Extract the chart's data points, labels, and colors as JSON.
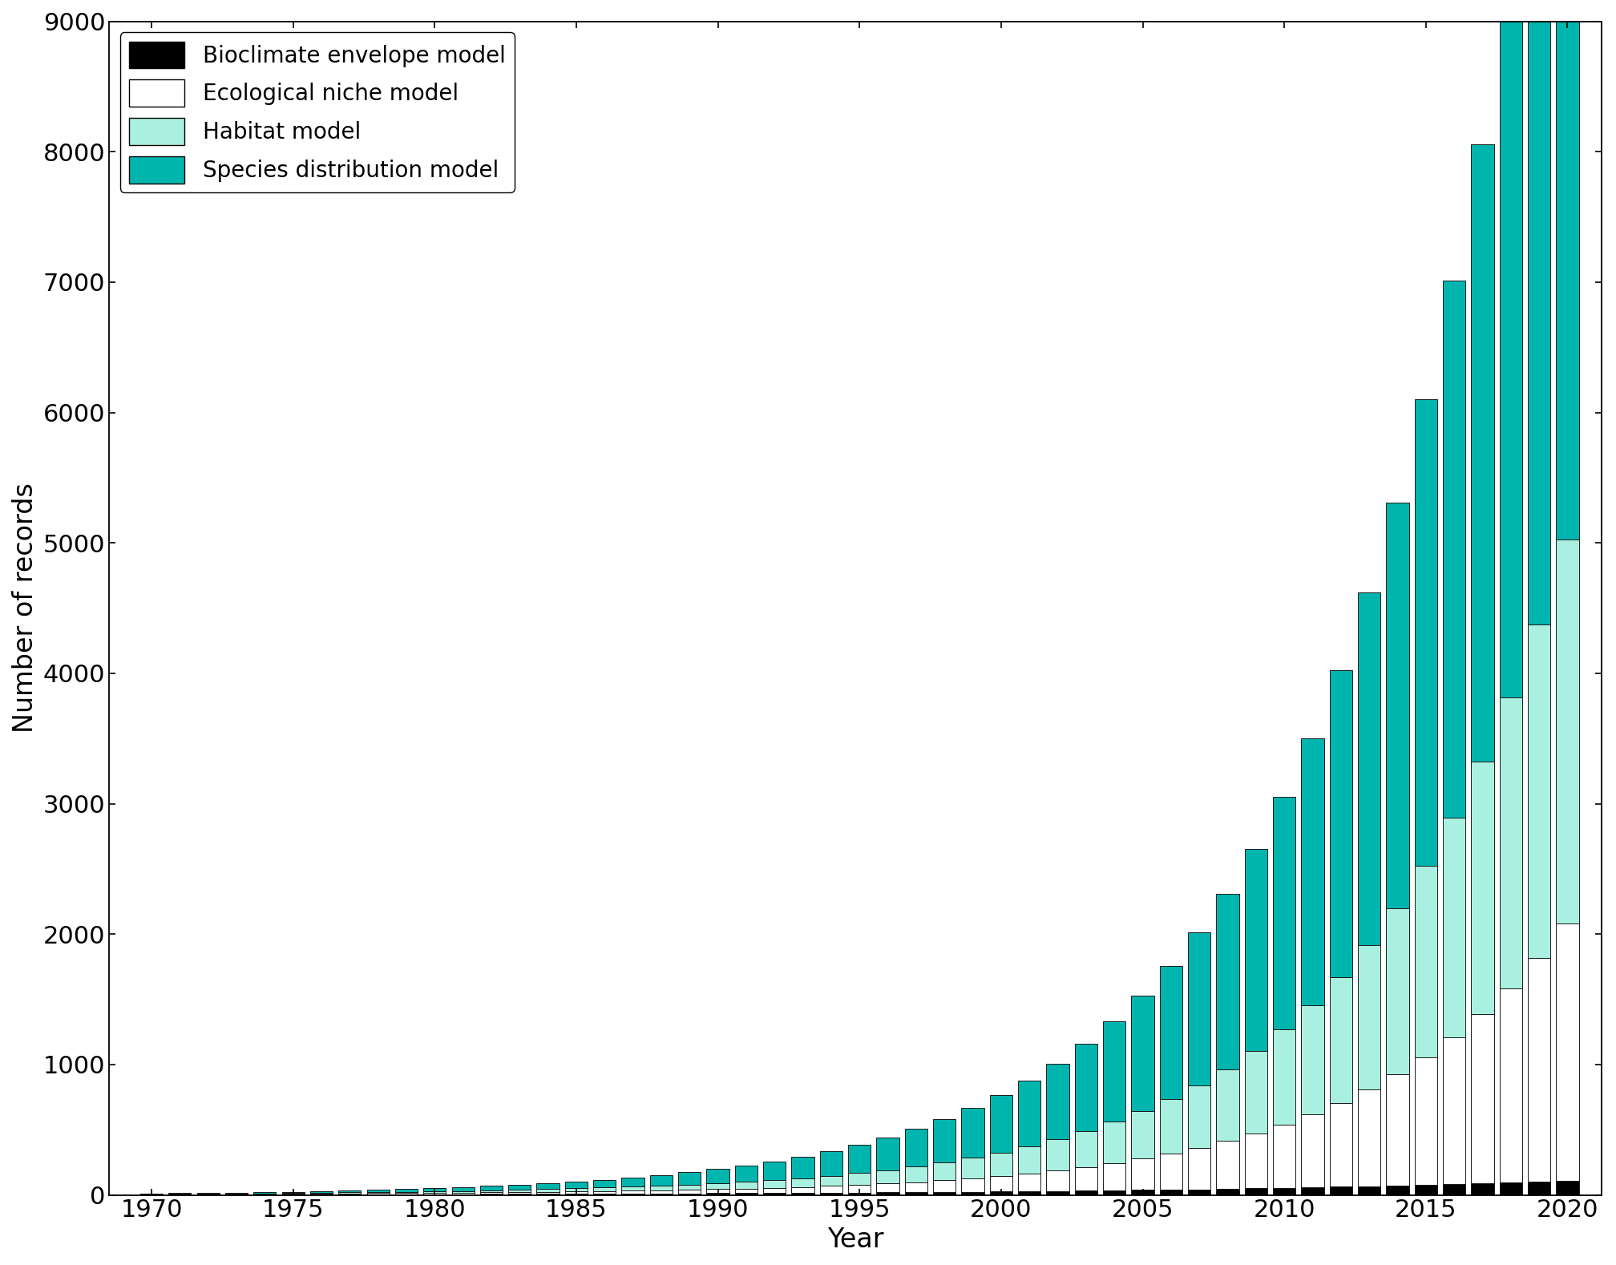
{
  "years": [
    1970,
    1971,
    1972,
    1973,
    1974,
    1975,
    1976,
    1977,
    1978,
    1979,
    1980,
    1981,
    1982,
    1983,
    1984,
    1985,
    1986,
    1987,
    1988,
    1989,
    1990,
    1991,
    1992,
    1993,
    1994,
    1995,
    1996,
    1997,
    1998,
    1999,
    2000,
    2001,
    2002,
    2003,
    2004,
    2005,
    2006,
    2007,
    2008,
    2009,
    2010,
    2011,
    2012,
    2013,
    2014,
    2015,
    2016,
    2017,
    2018,
    2019,
    2020
  ],
  "bioclimate": [
    2,
    2,
    2,
    2,
    3,
    3,
    4,
    4,
    5,
    5,
    6,
    6,
    7,
    8,
    8,
    9,
    9,
    10,
    11,
    12,
    13,
    14,
    15,
    16,
    17,
    18,
    19,
    20,
    22,
    24,
    26,
    28,
    30,
    32,
    35,
    38,
    40,
    43,
    46,
    50,
    54,
    58,
    62,
    67,
    72,
    77,
    83,
    89,
    95,
    101,
    108
  ],
  "ecological_niche": [
    2,
    2,
    3,
    3,
    4,
    5,
    6,
    7,
    8,
    9,
    10,
    11,
    13,
    14,
    16,
    18,
    20,
    22,
    25,
    28,
    32,
    35,
    40,
    45,
    52,
    60,
    68,
    78,
    90,
    104,
    120,
    138,
    158,
    182,
    210,
    242,
    278,
    320,
    368,
    423,
    487,
    560,
    644,
    741,
    852,
    980,
    1127,
    1296,
    1490,
    1714,
    1971
  ],
  "habitat": [
    3,
    3,
    4,
    4,
    5,
    6,
    7,
    8,
    10,
    11,
    13,
    14,
    16,
    18,
    21,
    24,
    27,
    31,
    35,
    40,
    46,
    52,
    60,
    68,
    78,
    90,
    103,
    119,
    136,
    157,
    180,
    207,
    238,
    274,
    315,
    362,
    417,
    479,
    551,
    634,
    729,
    838,
    964,
    1108,
    1274,
    1465,
    1685,
    1937,
    2228,
    2562,
    2946
  ],
  "species_distribution": [
    5,
    6,
    7,
    8,
    9,
    11,
    13,
    15,
    18,
    21,
    25,
    29,
    34,
    39,
    46,
    53,
    61,
    70,
    81,
    94,
    108,
    124,
    143,
    165,
    190,
    218,
    251,
    289,
    332,
    382,
    440,
    506,
    582,
    669,
    770,
    885,
    1018,
    1171,
    1346,
    1548,
    1780,
    2047,
    2354,
    2707,
    3113,
    3580,
    4117,
    4735,
    5447,
    6264,
    7203
  ],
  "colors": {
    "bioclimate": "#000000",
    "ecological_niche": "#ffffff",
    "habitat": "#aaf0e0",
    "species_distribution": "#00b5ad"
  },
  "edge_color": "#1a1a1a",
  "ylabel": "Number of records",
  "xlabel": "Year",
  "ylim": [
    0,
    9000
  ],
  "yticks": [
    0,
    1000,
    2000,
    3000,
    4000,
    5000,
    6000,
    7000,
    8000,
    9000
  ],
  "xticks": [
    1970,
    1975,
    1980,
    1985,
    1990,
    1995,
    2000,
    2005,
    2010,
    2015,
    2020
  ],
  "legend_labels": [
    "Bioclimate envelope model",
    "Ecological niche model",
    "Habitat model",
    "Species distribution model"
  ],
  "label_fontsize": 24,
  "tick_fontsize": 22,
  "legend_fontsize": 20
}
